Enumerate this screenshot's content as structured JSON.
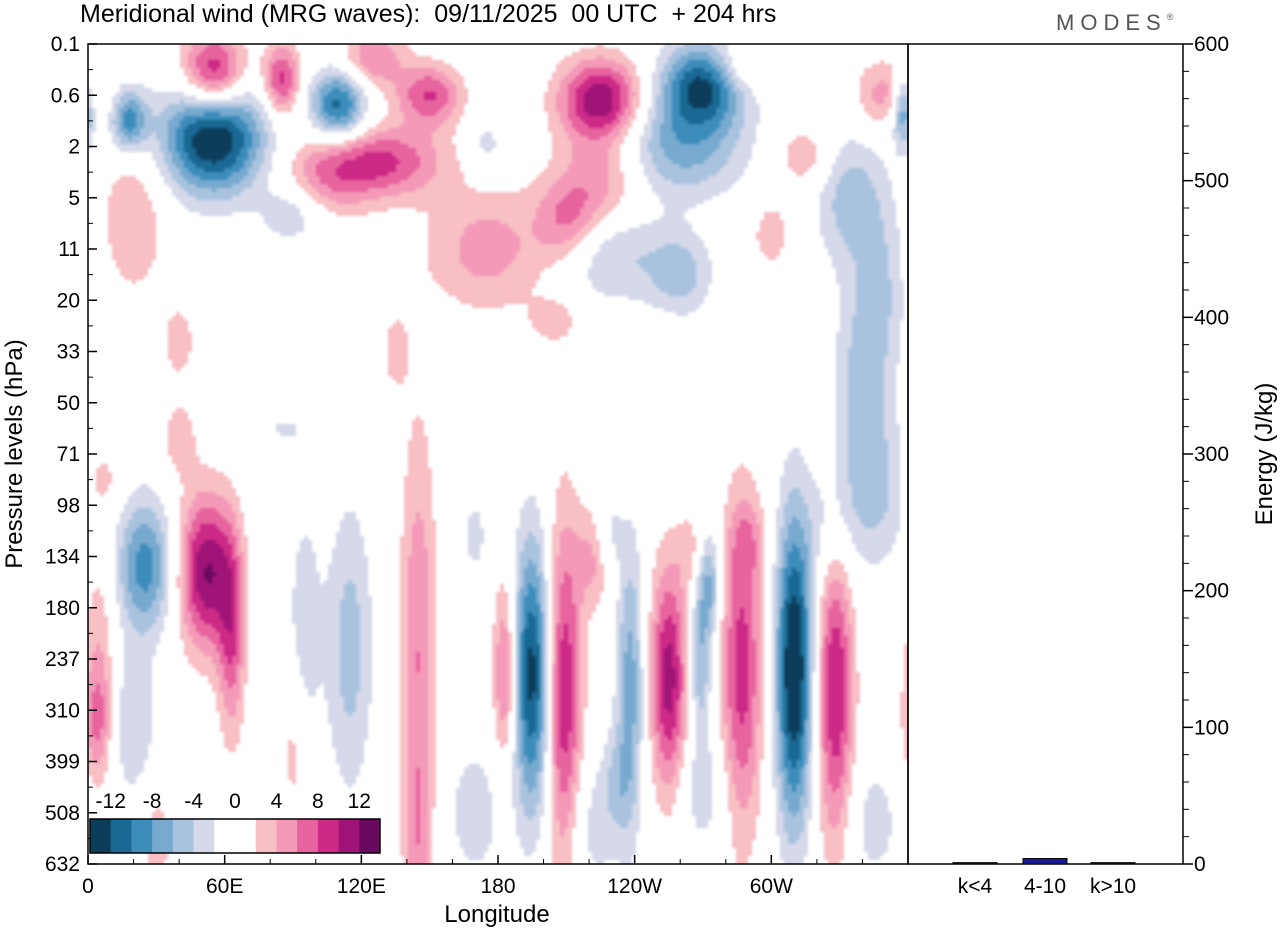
{
  "header": {
    "title": "Meridional wind (MRG waves):  09/11/2025  00 UTC  + 204 hrs",
    "brand": "MODES",
    "brand_mark": "®"
  },
  "chart_data": [
    {
      "type": "heatmap",
      "title": "Meridional wind (MRG waves):  09/11/2025  00 UTC  + 204 hrs",
      "xlabel": "Longitude",
      "ylabel": "Pressure levels (hPa)",
      "x_ticks": [
        "0",
        "60E",
        "120E",
        "180",
        "120W",
        "60W"
      ],
      "y_ticks": [
        "0.1",
        "0.6",
        "2",
        "5",
        "11",
        "20",
        "33",
        "50",
        "71",
        "98",
        "134",
        "180",
        "237",
        "310",
        "399",
        "508",
        "632"
      ],
      "colorbar": {
        "labels": [
          "-12",
          "-8",
          "-4",
          "0",
          "4",
          "8",
          "12"
        ],
        "colors": [
          "#0c3e5c",
          "#1a6894",
          "#3d8dbc",
          "#78aad0",
          "#a9c3de",
          "#d5d9ea",
          "#ffffff",
          "#ffffff",
          "#f8c0c4",
          "#f49ab8",
          "#e8649f",
          "#cc2a86",
          "#a01478",
          "#6a0a5e"
        ]
      },
      "features": [
        {
          "lon": 18,
          "level": 1.5,
          "value": -9,
          "w": 8,
          "h": 0.6
        },
        {
          "lon": 55,
          "level": 0.6,
          "value": 12,
          "w": 14,
          "h": 0.8
        },
        {
          "lon": 85,
          "level": 0.7,
          "value": 9,
          "w": 8,
          "h": 0.7
        },
        {
          "lon": 125,
          "level": 0.3,
          "value": 6,
          "w": 14,
          "h": 0.6
        },
        {
          "lon": 110,
          "level": 1.2,
          "value": -11,
          "w": 12,
          "h": 0.7
        },
        {
          "lon": 55,
          "level": 1.8,
          "value": -15,
          "w": 22,
          "h": 1.1
        },
        {
          "lon": 150,
          "level": 1.0,
          "value": 8,
          "w": 14,
          "h": 0.6
        },
        {
          "lon": 130,
          "level": 2.3,
          "value": 8,
          "w": 26,
          "h": 0.7
        },
        {
          "lon": 225,
          "level": 1.1,
          "value": 12,
          "w": 18,
          "h": 0.8
        },
        {
          "lon": 270,
          "level": 0.8,
          "value": -12,
          "w": 18,
          "h": 0.8
        },
        {
          "lon": 260,
          "level": 2.0,
          "value": -7,
          "w": 28,
          "h": 1.0
        },
        {
          "lon": 225,
          "level": 2.8,
          "value": 6,
          "w": 20,
          "h": 1.0
        },
        {
          "lon": 285,
          "level": 0.5,
          "value": 4,
          "w": 12,
          "h": 0.5
        },
        {
          "lon": 315,
          "level": 2.2,
          "value": 4,
          "w": 12,
          "h": 0.6
        },
        {
          "lon": 350,
          "level": 1.0,
          "value": 5,
          "w": 14,
          "h": 0.7
        },
        {
          "lon": 358,
          "level": 1.3,
          "value": -9,
          "w": 5,
          "h": 0.7
        },
        {
          "lon": 20,
          "level": 3.4,
          "value": 4,
          "w": 14,
          "h": 1.5
        },
        {
          "lon": 90,
          "level": 3.3,
          "value": -4,
          "w": 14,
          "h": 0.6
        },
        {
          "lon": 105,
          "level": 2.6,
          "value": 5,
          "w": 20,
          "h": 0.8
        },
        {
          "lon": 175,
          "level": 2.0,
          "value": -3,
          "w": 8,
          "h": 0.6
        },
        {
          "lon": 175,
          "level": 4.0,
          "value": 5,
          "w": 26,
          "h": 1.2
        },
        {
          "lon": 210,
          "level": 3.5,
          "value": 5,
          "w": 14,
          "h": 0.8
        },
        {
          "lon": 230,
          "level": 4.0,
          "value": -5,
          "w": 22,
          "h": 1.0
        },
        {
          "lon": 260,
          "level": 4.5,
          "value": -5,
          "w": 14,
          "h": 0.8
        },
        {
          "lon": 300,
          "level": 3.7,
          "value": 3,
          "w": 10,
          "h": 0.8
        },
        {
          "lon": 335,
          "level": 3.0,
          "value": -5,
          "w": 16,
          "h": 1.3
        },
        {
          "lon": 350,
          "level": 4.8,
          "value": -3,
          "w": 10,
          "h": 1.6
        },
        {
          "lon": 340,
          "level": 6.5,
          "value": -5,
          "w": 12,
          "h": 2.2
        },
        {
          "lon": 345,
          "level": 8.8,
          "value": -4,
          "w": 16,
          "h": 1.5
        },
        {
          "lon": 40,
          "level": 5.8,
          "value": 3,
          "w": 8,
          "h": 0.8
        },
        {
          "lon": 135,
          "level": 6.0,
          "value": 3,
          "w": 6,
          "h": 0.8
        },
        {
          "lon": 205,
          "level": 5.4,
          "value": 3,
          "w": 12,
          "h": 0.5
        },
        {
          "lon": 250,
          "level": 5.8,
          "value": 2,
          "w": 8,
          "h": 0.4
        },
        {
          "lon": 40,
          "level": 7.7,
          "value": 3,
          "w": 8,
          "h": 0.8
        },
        {
          "lon": 85,
          "level": 7.5,
          "value": -2,
          "w": 16,
          "h": 0.6
        },
        {
          "lon": 6,
          "level": 8.5,
          "value": 3,
          "w": 8,
          "h": 0.6
        },
        {
          "lon": 25,
          "level": 10.2,
          "value": -9,
          "w": 12,
          "h": 1.3
        },
        {
          "lon": 52,
          "level": 10.3,
          "value": 12,
          "w": 12,
          "h": 1.5
        },
        {
          "lon": 63,
          "level": 11.6,
          "value": 7,
          "w": 6,
          "h": 2.0
        },
        {
          "lon": 5,
          "level": 12.2,
          "value": 4,
          "w": 7,
          "h": 2.5
        },
        {
          "lon": 4,
          "level": 13.2,
          "value": 4,
          "w": 6,
          "h": 1.0
        },
        {
          "lon": 20,
          "level": 13.3,
          "value": -4,
          "w": 10,
          "h": 1.5
        },
        {
          "lon": 95,
          "level": 11.3,
          "value": -3,
          "w": 8,
          "h": 2.6
        },
        {
          "lon": 115,
          "level": 11.8,
          "value": -5,
          "w": 10,
          "h": 2.8
        },
        {
          "lon": 90,
          "level": 13.8,
          "value": 3,
          "w": 5,
          "h": 1.5
        },
        {
          "lon": 145,
          "level": 12.0,
          "value": 6,
          "w": 8,
          "h": 4.5
        },
        {
          "lon": 145,
          "level": 15.5,
          "value": 3,
          "w": 6,
          "h": 1.5
        },
        {
          "lon": 170,
          "level": 9.6,
          "value": -3,
          "w": 5,
          "h": 0.8
        },
        {
          "lon": 183,
          "level": 12.3,
          "value": 7,
          "w": 5,
          "h": 1.8
        },
        {
          "lon": 195,
          "level": 12.3,
          "value": -13,
          "w": 8,
          "h": 2.6
        },
        {
          "lon": 209,
          "level": 12.8,
          "value": 10,
          "w": 8,
          "h": 3.5
        },
        {
          "lon": 223,
          "level": 10.0,
          "value": 5,
          "w": 8,
          "h": 1.0
        },
        {
          "lon": 228,
          "level": 9.6,
          "value": -4,
          "w": 6,
          "h": 0.9
        },
        {
          "lon": 238,
          "level": 12.5,
          "value": -7,
          "w": 6,
          "h": 2.8
        },
        {
          "lon": 232,
          "level": 14.4,
          "value": -3,
          "w": 6,
          "h": 1.0
        },
        {
          "lon": 255,
          "level": 12.4,
          "value": 11,
          "w": 8,
          "h": 2.2
        },
        {
          "lon": 269,
          "level": 12.0,
          "value": -6,
          "w": 5,
          "h": 1.6
        },
        {
          "lon": 273,
          "level": 10.5,
          "value": -6,
          "w": 5,
          "h": 1.0
        },
        {
          "lon": 265,
          "level": 9.9,
          "value": 3,
          "w": 6,
          "h": 0.8
        },
        {
          "lon": 287,
          "level": 12.2,
          "value": 9,
          "w": 9,
          "h": 3.2
        },
        {
          "lon": 310,
          "level": 12.2,
          "value": -15,
          "w": 8,
          "h": 3.0
        },
        {
          "lon": 328,
          "level": 12.6,
          "value": 10,
          "w": 8,
          "h": 3.0
        },
        {
          "lon": 325,
          "level": 9.5,
          "value": -3,
          "w": 10,
          "h": 1.2
        },
        {
          "lon": 290,
          "level": 9.7,
          "value": 3,
          "w": 8,
          "h": 0.8
        },
        {
          "lon": 345,
          "level": 15.2,
          "value": -3,
          "w": 12,
          "h": 1.2
        },
        {
          "lon": 30,
          "level": 15.5,
          "value": 3,
          "w": 8,
          "h": 1.2
        },
        {
          "lon": 170,
          "level": 15.0,
          "value": -3,
          "w": 14,
          "h": 1.5
        },
        {
          "lon": 220,
          "level": 15.2,
          "value": -3,
          "w": 14,
          "h": 1.5
        },
        {
          "lon": 270,
          "level": 14.6,
          "value": -3,
          "w": 12,
          "h": 1.2
        }
      ]
    },
    {
      "type": "bar",
      "categories": [
        "k<4",
        "4-10",
        "k>10"
      ],
      "values": [
        1,
        4,
        1
      ],
      "ylabel": "Energy (J/kg)",
      "ylim": [
        0,
        600
      ],
      "y_ticks": [
        "0",
        "100",
        "200",
        "300",
        "400",
        "500",
        "600"
      ],
      "bar_color": "#1a1a99"
    }
  ]
}
